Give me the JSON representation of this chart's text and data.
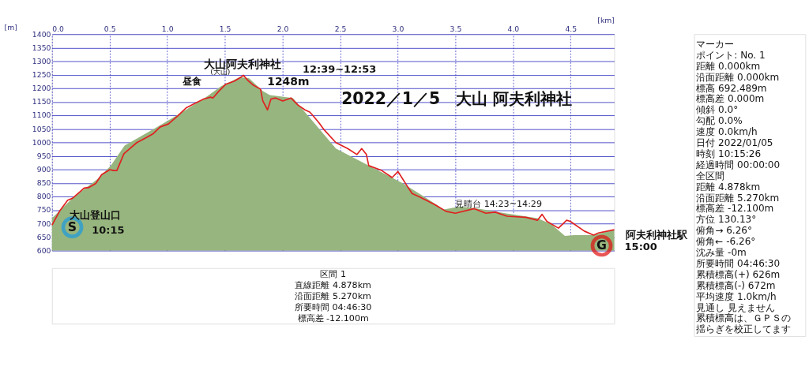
{
  "chart_data": {
    "type": "line",
    "title": "2022／1／5　大山 阿夫利神社",
    "xlabel": "[km]",
    "ylabel": "[m]",
    "xlim": [
      0,
      4.878
    ],
    "ylim": [
      600,
      1400
    ],
    "xticks": [
      {
        "value": 0,
        "label": "0.0"
      },
      {
        "value": 0.5,
        "label": "0.5"
      },
      {
        "value": 1,
        "label": "1.0"
      },
      {
        "value": 1.5,
        "label": "1.5"
      },
      {
        "value": 2,
        "label": "2.0"
      },
      {
        "value": 2.5,
        "label": "2.5"
      },
      {
        "value": 3,
        "label": "3.0"
      },
      {
        "value": 3.5,
        "label": "3.5"
      },
      {
        "value": 4,
        "label": "4.0"
      },
      {
        "value": 4.5,
        "label": "4.5"
      }
    ],
    "yticks": [
      600,
      650,
      700,
      750,
      800,
      850,
      900,
      950,
      {
        "value": 1000,
        "label": "1000"
      },
      {
        "value": 1050,
        "label": "1050"
      },
      {
        "value": 1100,
        "label": "1100"
      },
      {
        "value": 1150,
        "label": "1150"
      },
      {
        "value": 1200,
        "label": "1200"
      },
      {
        "value": 1250,
        "label": "1250"
      },
      {
        "value": 1300,
        "label": "1300"
      },
      {
        "value": 1350,
        "label": "1350"
      },
      {
        "value": 1400,
        "label": "1400"
      }
    ],
    "grid": true,
    "series": [
      {
        "type": "area",
        "color": "#97b57e",
        "x": [
          0,
          0.187,
          0.39,
          0.51,
          0.63,
          0.915,
          1.12,
          1.325,
          1.47,
          1.63,
          1.71,
          1.83,
          1.89,
          2.09,
          2.26,
          2.463,
          2.73,
          3.03,
          3.21,
          3.4,
          3.54,
          3.68,
          3.93,
          4.21,
          4.33,
          4.45,
          4.53,
          4.699,
          4.878
        ],
        "values": [
          720,
          797,
          863,
          914,
          988,
          1057,
          1109,
          1164,
          1208,
          1241,
          1237,
          1189,
          1175,
          1164,
          1079,
          977,
          918,
          852,
          804,
          752,
          763,
          756,
          738,
          720,
          698,
          654,
          657,
          657,
          676
        ]
      },
      {
        "color": "#e02020",
        "x": [
          0,
          0.065,
          0.136,
          0.177,
          0.248,
          0.278,
          0.319,
          0.38,
          0.431,
          0.502,
          0.533,
          0.563,
          0.624,
          0.665,
          0.736,
          0.817,
          0.878,
          0.939,
          1.01,
          1.091,
          1.163,
          1.244,
          1.315,
          1.376,
          1.396,
          1.447,
          1.508,
          1.579,
          1.64,
          1.66,
          1.697,
          1.748,
          1.809,
          1.829,
          1.87,
          1.9,
          1.941,
          2.002,
          2.073,
          2.134,
          2.195,
          2.236,
          2.26,
          2.317,
          2.362,
          2.463,
          2.565,
          2.646,
          2.687,
          2.728,
          2.748,
          2.86,
          2.951,
          3.002,
          3.073,
          3.124,
          3.195,
          3.317,
          3.419,
          3.5,
          3.663,
          3.764,
          3.846,
          3.947,
          4.11,
          4.211,
          4.252,
          4.293,
          4.394,
          4.465,
          4.496,
          4.618,
          4.699,
          4.74,
          4.821,
          4.878
        ],
        "values": [
          694,
          745,
          786,
          793,
          819,
          831,
          833,
          848,
          881,
          899,
          896,
          896,
          958,
          973,
          999,
          1017,
          1032,
          1057,
          1068,
          1098,
          1127,
          1145,
          1160,
          1167,
          1164,
          1189,
          1215,
          1226,
          1241,
          1248,
          1230,
          1211,
          1197,
          1153,
          1120,
          1160,
          1164,
          1153,
          1164,
          1138,
          1120,
          1112,
          1101,
          1072,
          1046,
          999,
          977,
          955,
          977,
          955,
          914,
          896,
          870,
          892,
          844,
          811,
          797,
          771,
          745,
          738,
          755,
          738,
          742,
          727,
          723,
          712,
          734,
          708,
          683,
          712,
          708,
          672,
          657,
          665,
          672,
          677
        ]
      }
    ],
    "annotations": [
      "大山阿夫利神社",
      "(大山)",
      "1248m",
      "12:39~12:53",
      "昼食",
      "S",
      "大山登山口",
      "10:15",
      "見晴台 14:23~14:29",
      "G",
      "阿夫利神社駅",
      "15:00",
      "マーカー",
      "ポイント: No. 1",
      "距離 0.000km",
      "沿面距離 0.000km",
      "標高 692.489m",
      "標高差 0.000m",
      "傾斜 0.0°",
      "勾配 0.0%",
      "速度 0.0km/h",
      "日付 2022/01/05",
      "時刻 10:15:26",
      "経過時間 00:00:00",
      "全区間",
      "距離 4.878km",
      "沿面距離 5.270km",
      "標高差 -12.100m",
      "方位 130.13°",
      "俯角→ 6.26°",
      "俯角← -6.26°",
      "沈み量 -0m",
      "所要時間 04:46:30",
      "累積標高(+) 626m",
      "累積標高(-) 672m",
      "平均速度 1.0km/h",
      "見通し 見えません",
      "累積標高は、ＧＰＳの揺らぎを校正してます",
      "区間 1",
      "直線距離 4.878km",
      "沿面距離 5.270km",
      "所要時間 04:46:30",
      "標高差 -12.100m"
    ]
  }
}
